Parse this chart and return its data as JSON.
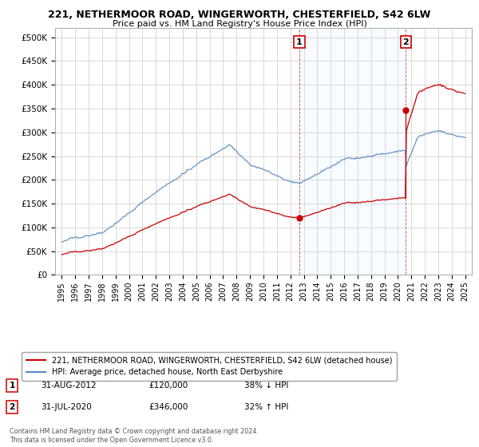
{
  "title": "221, NETHERMOOR ROAD, WINGERWORTH, CHESTERFIELD, S42 6LW",
  "subtitle": "Price paid vs. HM Land Registry's House Price Index (HPI)",
  "yticks": [
    0,
    50000,
    100000,
    150000,
    200000,
    250000,
    300000,
    350000,
    400000,
    450000,
    500000
  ],
  "ylim": [
    0,
    520000
  ],
  "xlim_start": 1994.5,
  "xlim_end": 2025.5,
  "xticks": [
    1995,
    1996,
    1997,
    1998,
    1999,
    2000,
    2001,
    2002,
    2003,
    2004,
    2005,
    2006,
    2007,
    2008,
    2009,
    2010,
    2011,
    2012,
    2013,
    2014,
    2015,
    2016,
    2017,
    2018,
    2019,
    2020,
    2021,
    2022,
    2023,
    2024,
    2025
  ],
  "property_color": "#cc0000",
  "hpi_color": "#5588bb",
  "shade_color": "#ddeeff",
  "sale1_x": 2012.667,
  "sale1_y": 120000,
  "sale2_x": 2020.583,
  "sale2_y": 346000,
  "legend_property": "221, NETHERMOOR ROAD, WINGERWORTH, CHESTERFIELD, S42 6LW (detached house)",
  "legend_hpi": "HPI: Average price, detached house, North East Derbyshire",
  "note1_date": "31-AUG-2012",
  "note1_price": "£120,000",
  "note1_hpi": "38% ↓ HPI",
  "note2_date": "31-JUL-2020",
  "note2_price": "£346,000",
  "note2_hpi": "32% ↑ HPI",
  "copyright": "Contains HM Land Registry data © Crown copyright and database right 2024.\nThis data is licensed under the Open Government Licence v3.0.",
  "background_color": "#ffffff",
  "grid_color": "#cccccc"
}
